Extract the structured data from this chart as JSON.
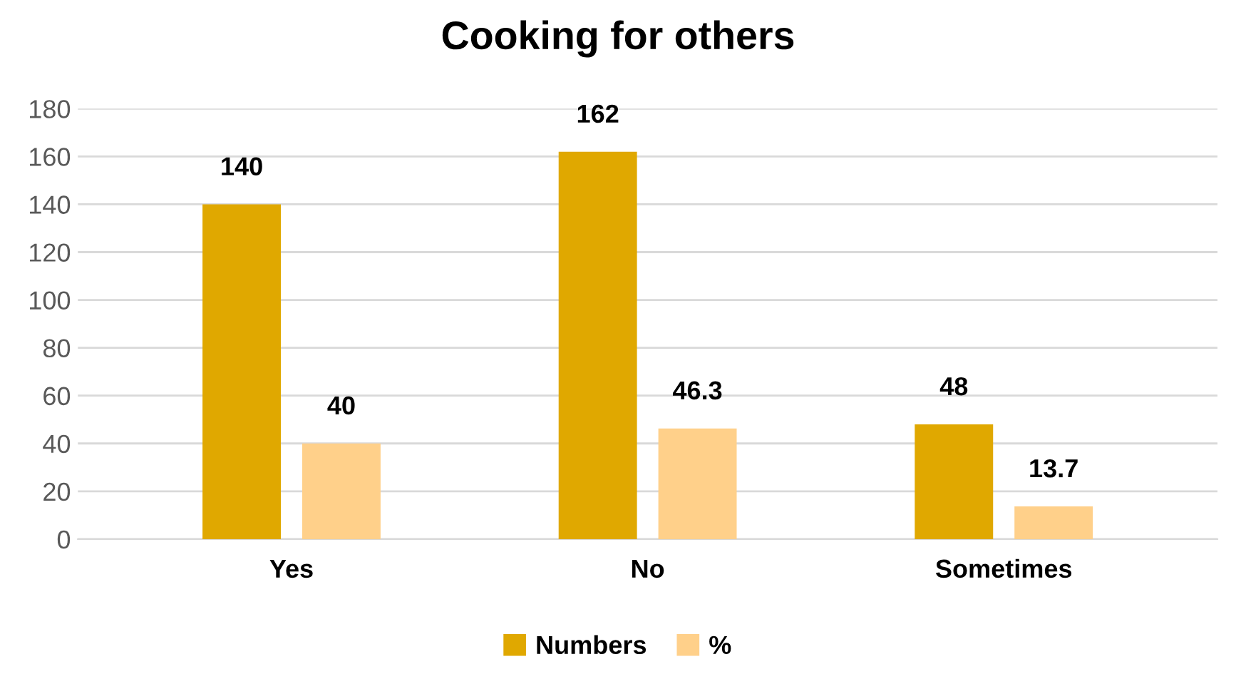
{
  "chart_data": {
    "type": "bar",
    "title": "Cooking for others",
    "categories": [
      "Yes",
      "No",
      "Sometimes"
    ],
    "series": [
      {
        "name": "Numbers",
        "color": "#e0a800",
        "values": [
          140,
          162,
          48
        ]
      },
      {
        "name": "%",
        "color": "#ffd08a",
        "values": [
          40,
          46.3,
          13.7
        ]
      }
    ],
    "ylim": [
      0,
      180
    ],
    "yticks": [
      0,
      20,
      40,
      60,
      80,
      100,
      120,
      140,
      160,
      180
    ],
    "grid": "y",
    "legend": "bottom",
    "data_labels": true
  }
}
